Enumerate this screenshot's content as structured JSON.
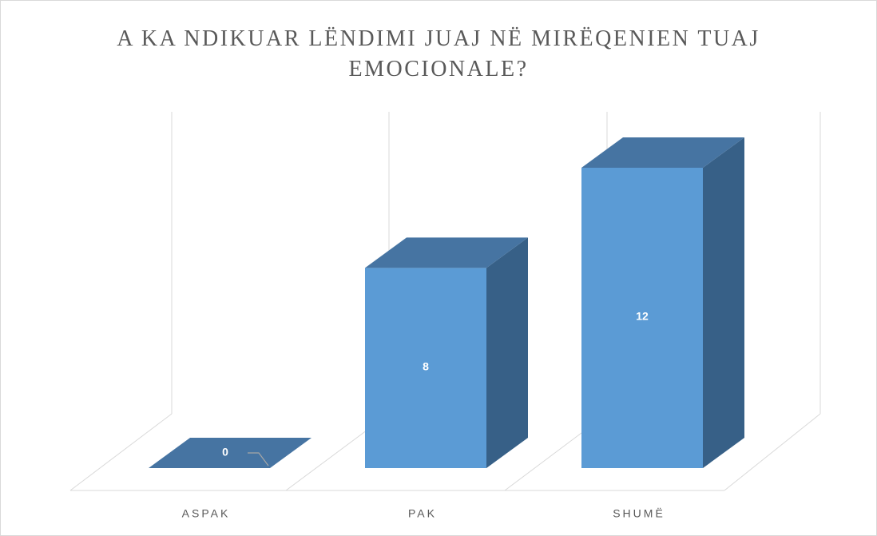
{
  "chart_data": {
    "type": "bar3d",
    "title": "A KA NDIKUAR LËNDIMI JUAJ NË MIRËQENIEN TUAJ EMOCIONALE?",
    "categories": [
      "ASPAK",
      "PAK",
      "SHUMË"
    ],
    "values": [
      0,
      8,
      12
    ],
    "color": "#5b9bd5",
    "ylim": [
      0,
      12
    ]
  }
}
